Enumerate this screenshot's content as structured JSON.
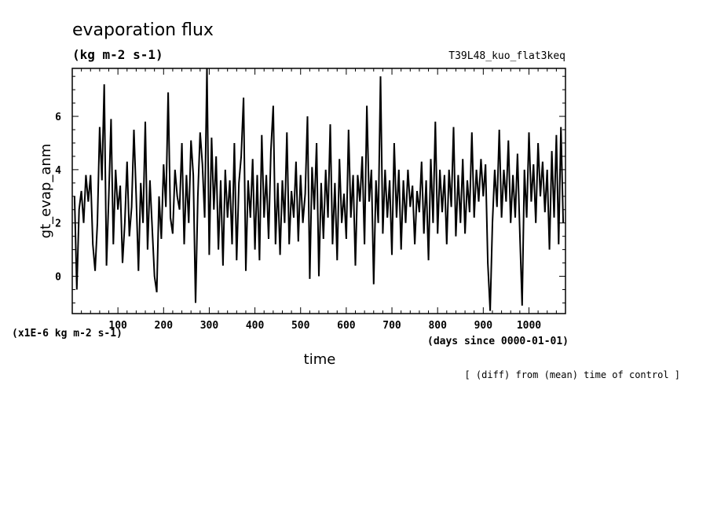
{
  "header": {
    "title": "evaporation flux",
    "units": "(kg m-2 s-1)",
    "run_name": "T39L48_kuo_flat3keq"
  },
  "footer": {
    "note": "[ (diff) from (mean) time of control ]"
  },
  "chart_data": {
    "type": "line",
    "xlabel": "time",
    "ylabel": "gt_evap_anm",
    "x_unit": "(days since 0000-01-01)",
    "y_scale_note": "(x1E-6 kg m-2 s-1)",
    "xlim": [
      0,
      1080
    ],
    "ylim": [
      -1.4,
      7.8
    ],
    "x_ticks": [
      100,
      200,
      300,
      400,
      500,
      600,
      700,
      800,
      900,
      1000
    ],
    "y_ticks": [
      0,
      2,
      4,
      6
    ],
    "series": [
      {
        "values": [
          [
            5,
            3.0
          ],
          [
            10,
            -0.5
          ],
          [
            15,
            2.5
          ],
          [
            20,
            3.2
          ],
          [
            25,
            2.0
          ],
          [
            30,
            3.8
          ],
          [
            35,
            2.8
          ],
          [
            40,
            3.8
          ],
          [
            45,
            1.2
          ],
          [
            50,
            0.2
          ],
          [
            55,
            2.0
          ],
          [
            60,
            5.6
          ],
          [
            65,
            3.6
          ],
          [
            70,
            7.2
          ],
          [
            75,
            0.4
          ],
          [
            80,
            3.0
          ],
          [
            85,
            5.9
          ],
          [
            90,
            1.2
          ],
          [
            95,
            4.0
          ],
          [
            100,
            2.5
          ],
          [
            105,
            3.4
          ],
          [
            110,
            0.5
          ],
          [
            115,
            2.0
          ],
          [
            120,
            4.3
          ],
          [
            125,
            1.5
          ],
          [
            130,
            2.6
          ],
          [
            135,
            5.5
          ],
          [
            140,
            3.0
          ],
          [
            145,
            0.2
          ],
          [
            150,
            3.5
          ],
          [
            155,
            2.0
          ],
          [
            160,
            5.8
          ],
          [
            165,
            1.0
          ],
          [
            170,
            3.6
          ],
          [
            175,
            1.8
          ],
          [
            180,
            0.0
          ],
          [
            185,
            -0.6
          ],
          [
            190,
            3.0
          ],
          [
            195,
            1.4
          ],
          [
            200,
            4.2
          ],
          [
            205,
            2.6
          ],
          [
            210,
            6.9
          ],
          [
            215,
            2.2
          ],
          [
            220,
            1.6
          ],
          [
            225,
            4.0
          ],
          [
            230,
            3.0
          ],
          [
            235,
            2.5
          ],
          [
            240,
            5.0
          ],
          [
            245,
            1.2
          ],
          [
            250,
            3.8
          ],
          [
            255,
            2.0
          ],
          [
            260,
            5.1
          ],
          [
            265,
            3.8
          ],
          [
            270,
            -1.0
          ],
          [
            275,
            3.0
          ],
          [
            280,
            5.4
          ],
          [
            285,
            4.2
          ],
          [
            290,
            2.2
          ],
          [
            295,
            7.8
          ],
          [
            300,
            0.8
          ],
          [
            305,
            5.2
          ],
          [
            310,
            2.5
          ],
          [
            315,
            4.5
          ],
          [
            320,
            1.0
          ],
          [
            325,
            3.6
          ],
          [
            330,
            0.4
          ],
          [
            335,
            4.0
          ],
          [
            340,
            2.2
          ],
          [
            345,
            3.6
          ],
          [
            350,
            1.2
          ],
          [
            355,
            5.0
          ],
          [
            360,
            0.6
          ],
          [
            365,
            3.5
          ],
          [
            370,
            4.5
          ],
          [
            375,
            6.7
          ],
          [
            380,
            0.2
          ],
          [
            385,
            3.6
          ],
          [
            390,
            2.2
          ],
          [
            395,
            4.4
          ],
          [
            400,
            1.0
          ],
          [
            405,
            3.8
          ],
          [
            410,
            0.6
          ],
          [
            415,
            5.3
          ],
          [
            420,
            2.2
          ],
          [
            425,
            3.8
          ],
          [
            430,
            1.4
          ],
          [
            435,
            4.7
          ],
          [
            440,
            6.4
          ],
          [
            445,
            1.2
          ],
          [
            450,
            3.5
          ],
          [
            455,
            0.8
          ],
          [
            460,
            3.6
          ],
          [
            465,
            2.0
          ],
          [
            470,
            5.4
          ],
          [
            475,
            1.2
          ],
          [
            480,
            3.2
          ],
          [
            485,
            2.2
          ],
          [
            490,
            4.3
          ],
          [
            495,
            1.3
          ],
          [
            500,
            3.8
          ],
          [
            505,
            2.0
          ],
          [
            510,
            3.1
          ],
          [
            515,
            6.0
          ],
          [
            520,
            -0.1
          ],
          [
            525,
            4.1
          ],
          [
            530,
            2.5
          ],
          [
            535,
            5.0
          ],
          [
            540,
            0.0
          ],
          [
            545,
            3.5
          ],
          [
            550,
            1.4
          ],
          [
            555,
            4.0
          ],
          [
            560,
            2.2
          ],
          [
            565,
            5.7
          ],
          [
            570,
            1.2
          ],
          [
            575,
            3.5
          ],
          [
            580,
            0.6
          ],
          [
            585,
            4.4
          ],
          [
            590,
            2.0
          ],
          [
            595,
            3.1
          ],
          [
            600,
            1.4
          ],
          [
            605,
            5.5
          ],
          [
            610,
            2.2
          ],
          [
            615,
            3.8
          ],
          [
            620,
            0.4
          ],
          [
            625,
            3.8
          ],
          [
            630,
            2.8
          ],
          [
            635,
            4.5
          ],
          [
            640,
            1.2
          ],
          [
            645,
            6.4
          ],
          [
            650,
            2.8
          ],
          [
            655,
            4.0
          ],
          [
            660,
            -0.3
          ],
          [
            665,
            3.6
          ],
          [
            670,
            2.0
          ],
          [
            675,
            7.5
          ],
          [
            680,
            1.6
          ],
          [
            685,
            4.0
          ],
          [
            690,
            2.2
          ],
          [
            695,
            3.6
          ],
          [
            700,
            0.8
          ],
          [
            705,
            5.0
          ],
          [
            710,
            2.2
          ],
          [
            715,
            4.0
          ],
          [
            720,
            1.0
          ],
          [
            725,
            3.6
          ],
          [
            730,
            2.0
          ],
          [
            735,
            4.0
          ],
          [
            740,
            2.6
          ],
          [
            745,
            3.4
          ],
          [
            750,
            1.2
          ],
          [
            755,
            3.2
          ],
          [
            760,
            2.4
          ],
          [
            765,
            4.3
          ],
          [
            770,
            1.6
          ],
          [
            775,
            3.6
          ],
          [
            780,
            0.6
          ],
          [
            785,
            4.4
          ],
          [
            790,
            2.0
          ],
          [
            795,
            5.8
          ],
          [
            800,
            1.6
          ],
          [
            805,
            4.0
          ],
          [
            810,
            2.4
          ],
          [
            815,
            3.8
          ],
          [
            820,
            1.2
          ],
          [
            825,
            4.0
          ],
          [
            830,
            2.6
          ],
          [
            835,
            5.6
          ],
          [
            840,
            1.5
          ],
          [
            845,
            3.8
          ],
          [
            850,
            2.0
          ],
          [
            855,
            4.4
          ],
          [
            860,
            1.6
          ],
          [
            865,
            3.6
          ],
          [
            870,
            2.4
          ],
          [
            875,
            5.4
          ],
          [
            880,
            2.2
          ],
          [
            885,
            4.0
          ],
          [
            890,
            2.8
          ],
          [
            895,
            4.4
          ],
          [
            900,
            3.0
          ],
          [
            905,
            4.2
          ],
          [
            910,
            0.5
          ],
          [
            915,
            -1.3
          ],
          [
            920,
            2.0
          ],
          [
            925,
            4.0
          ],
          [
            930,
            2.6
          ],
          [
            935,
            5.5
          ],
          [
            940,
            2.2
          ],
          [
            945,
            4.0
          ],
          [
            950,
            2.8
          ],
          [
            955,
            5.1
          ],
          [
            960,
            2.0
          ],
          [
            965,
            3.8
          ],
          [
            970,
            2.2
          ],
          [
            975,
            4.6
          ],
          [
            980,
            1.6
          ],
          [
            985,
            -1.1
          ],
          [
            990,
            4.0
          ],
          [
            995,
            2.2
          ],
          [
            1000,
            5.4
          ],
          [
            1005,
            2.8
          ],
          [
            1010,
            4.2
          ],
          [
            1015,
            2.0
          ],
          [
            1020,
            5.0
          ],
          [
            1025,
            3.0
          ],
          [
            1030,
            4.3
          ],
          [
            1035,
            2.4
          ],
          [
            1040,
            4.0
          ],
          [
            1045,
            1.0
          ],
          [
            1050,
            4.7
          ],
          [
            1055,
            2.2
          ],
          [
            1060,
            5.3
          ],
          [
            1065,
            1.2
          ],
          [
            1070,
            5.6
          ],
          [
            1075,
            2.0
          ]
        ]
      }
    ]
  }
}
